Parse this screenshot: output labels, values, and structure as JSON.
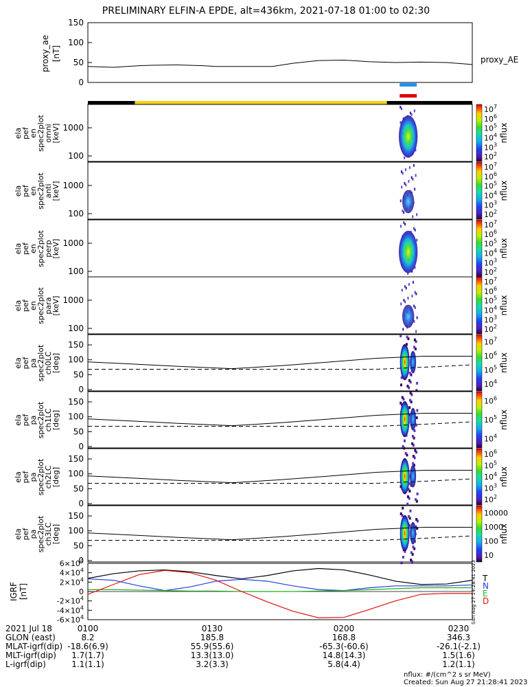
{
  "title": "PRELIMINARY ELFIN-A EPDE, alt=436km, 2021-07-18 01:00 to 02:30",
  "footer": {
    "rows": [
      {
        "label": "2021 Jul 18",
        "values": [
          "0100",
          "0130",
          "0200",
          "0230"
        ]
      },
      {
        "label": "GLON (east)",
        "values": [
          "8.2",
          "185.8",
          "168.8",
          "346.3"
        ]
      },
      {
        "label": "MLAT-igrf(dip)",
        "values": [
          "-18.6(6.9)",
          "55.9(55.6)",
          "-65.3(-60.6)",
          "-26.1(-2.1)"
        ]
      },
      {
        "label": "MLT-igrf(dip)",
        "values": [
          "1.7(1.7)",
          "13.3(13.0)",
          "14.8(14.3)",
          "1.5(1.6)"
        ]
      },
      {
        "label": "L-igrf(dip)",
        "values": [
          "1.1(1.1)",
          "3.2(3.3)",
          "5.8(4.4)",
          "1.2(1.1)"
        ]
      }
    ],
    "units_note": "nflux: #/(cm^2 s sr MeV)",
    "created": "Created: Sun Aug 27 21:28:41 2023",
    "side_stamp": "Sun Aug 27 14:28:41 2023"
  },
  "colors": {
    "status_yellow": "#f2d21b",
    "igrf_T": "#000000",
    "igrf_N": "#1f3fe0",
    "igrf_E": "#1fae1f",
    "igrf_D": "#e01010"
  },
  "chart_data": [
    {
      "type": "line",
      "id": "proxy_ae",
      "ylabel": [
        "proxy_ae",
        "[nT]"
      ],
      "legend": "proxy_AE",
      "ylim": [
        0,
        150
      ],
      "yticks": [
        "0",
        "50",
        "100",
        "150"
      ],
      "x_hours": [
        1.0,
        1.1,
        1.2,
        1.25,
        1.35,
        1.45,
        1.5,
        1.58,
        1.65,
        1.72,
        1.8,
        1.9,
        2.0,
        2.1,
        2.2,
        2.3,
        2.4,
        2.5
      ],
      "values": [
        40,
        38,
        42,
        43,
        44,
        42,
        40,
        40,
        40,
        40,
        48,
        55,
        56,
        52,
        50,
        51,
        50,
        45
      ]
    },
    {
      "type": "bar",
      "id": "status_bars",
      "segments": [
        {
          "from": "01:00",
          "to": "01:11",
          "color": "black"
        },
        {
          "from": "01:11",
          "to": "02:10",
          "color": "yellow"
        },
        {
          "from": "02:10",
          "to": "02:30",
          "color": "black"
        }
      ],
      "markers": [
        {
          "from": "02:13",
          "to": "02:17",
          "color": "#1e90ff"
        },
        {
          "from": "02:13",
          "to": "02:17",
          "color": "#e00000"
        }
      ]
    },
    {
      "type": "heatmap",
      "id": "spectrograms_energy",
      "panels": [
        {
          "ylabel": [
            "ela",
            "pef",
            "en",
            "spec2plot",
            "omni",
            "[keV]"
          ],
          "intensity": 1.0
        },
        {
          "ylabel": [
            "ela",
            "pef",
            "en",
            "spec2plot",
            "anti",
            "[keV]"
          ],
          "intensity": 0.45
        },
        {
          "ylabel": [
            "ela",
            "pef",
            "en",
            "spec2plot",
            "perp",
            "[keV]"
          ],
          "intensity": 1.0
        },
        {
          "ylabel": [
            "ela",
            "pef",
            "en",
            "spec2plot",
            "para",
            "[keV]"
          ],
          "intensity": 0.5
        }
      ],
      "yticks": [
        "100",
        "1000"
      ],
      "colorbar": {
        "label": "nflux",
        "ticks": [
          "10^2",
          "10^3",
          "10^4",
          "10^5",
          "10^6",
          "10^7"
        ]
      },
      "active_window": [
        "02:13",
        "02:17"
      ]
    },
    {
      "type": "heatmap",
      "id": "spectrograms_pitch",
      "panels": [
        {
          "ylabel": [
            "ela",
            "pef",
            "pa",
            "spec2plot",
            "ch0LC",
            "[deg]"
          ],
          "cbar": [
            "10^4",
            "10^5",
            "10^6",
            "10^7"
          ]
        },
        {
          "ylabel": [
            "ela",
            "pef",
            "pa",
            "spec2plot",
            "ch1LC",
            "[deg]"
          ],
          "cbar": [
            "10^4",
            "10^5",
            "10^6"
          ]
        },
        {
          "ylabel": [
            "ela",
            "pef",
            "pa",
            "spec2plot",
            "ch2LC",
            "[deg]"
          ],
          "cbar": [
            "10^2",
            "10^3",
            "10^4",
            "10^5",
            "10^6"
          ]
        },
        {
          "ylabel": [
            "ela",
            "pef",
            "pa",
            "spec2plot",
            "ch3LC",
            "[deg]"
          ],
          "cbar": [
            "10",
            "100",
            "1000",
            "10000"
          ]
        }
      ],
      "ylim": [
        0,
        180
      ],
      "yticks": [
        "0",
        "50",
        "100",
        "150"
      ],
      "colorbar_label": "nflux",
      "loss_cone_solid_deg": [
        93,
        85,
        77,
        70,
        80,
        92,
        105,
        112,
        112
      ],
      "loss_cone_dashed_deg": [
        68,
        68,
        68,
        68,
        68,
        68,
        68,
        75,
        83
      ]
    },
    {
      "type": "line",
      "id": "igrf",
      "ylabel": [
        "IGRF",
        "[nT]"
      ],
      "ylim": [
        -60000,
        60000
      ],
      "yticks": [
        "-6×10^4",
        "-4×10^4",
        "-2×10^4",
        "0",
        "2×10^4",
        "4×10^4",
        "6×10^4"
      ],
      "legend": [
        "T",
        "N",
        "E",
        "D"
      ],
      "x_hours": [
        1.0,
        1.1,
        1.2,
        1.3,
        1.4,
        1.5,
        1.6,
        1.7,
        1.8,
        1.9,
        2.0,
        2.1,
        2.2,
        2.3,
        2.4,
        2.5
      ],
      "series": [
        {
          "name": "T",
          "values": [
            28000,
            38000,
            44000,
            46000,
            42000,
            34000,
            27000,
            34000,
            44000,
            49000,
            46000,
            35000,
            22000,
            15000,
            16000,
            24000
          ]
        },
        {
          "name": "N",
          "values": [
            27000,
            24000,
            12000,
            2000,
            10000,
            22000,
            26000,
            22000,
            12000,
            4000,
            2000,
            8000,
            12000,
            12000,
            12000,
            14000
          ]
        },
        {
          "name": "E",
          "values": [
            4000,
            4000,
            3000,
            2000,
            1000,
            1000,
            0,
            0,
            0,
            1000,
            2000,
            4000,
            6000,
            8000,
            8000,
            8000
          ]
        },
        {
          "name": "D",
          "values": [
            -6000,
            15000,
            36000,
            45000,
            40000,
            24000,
            0,
            -22000,
            -42000,
            -56000,
            -55000,
            -38000,
            -20000,
            -6000,
            -4000,
            -4000
          ]
        }
      ]
    }
  ]
}
